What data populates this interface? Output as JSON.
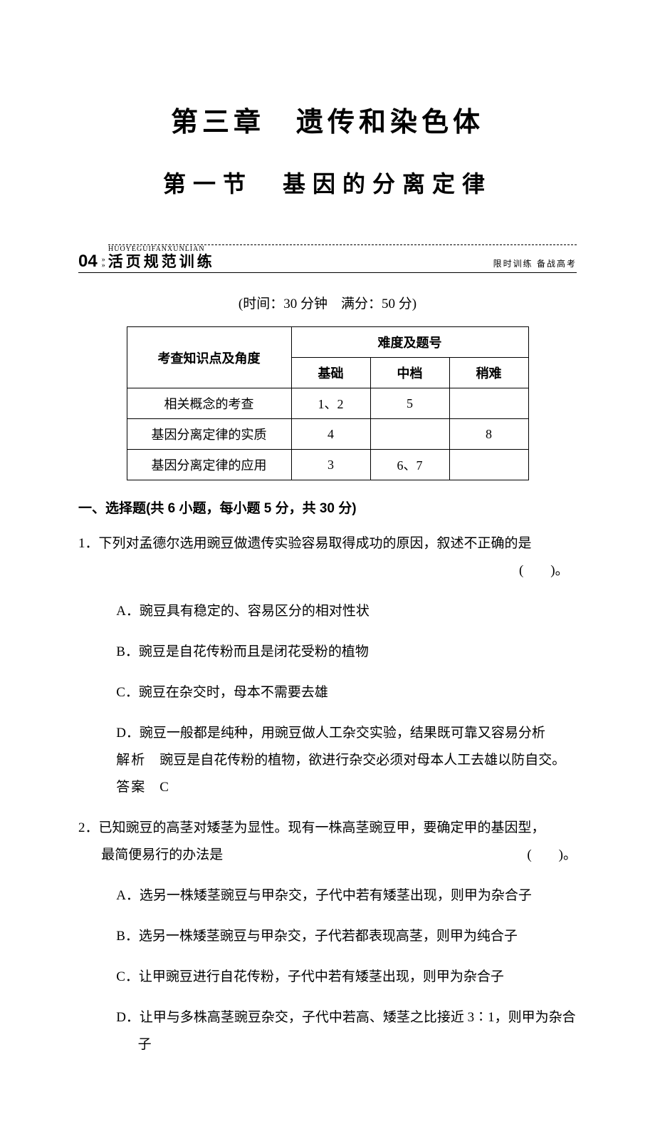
{
  "chapter_title": "第三章　遗传和染色体",
  "section_title": "第一节　基因的分离定律",
  "banner": {
    "number": "04",
    "pinyin": "HUOYEGUIFANXUNLIAN",
    "label": "活页规范训练",
    "right": "限时训练  备战高考"
  },
  "time_info": "(时间：30 分钟　满分：50 分)",
  "table": {
    "header_topic": "考查知识点及角度",
    "header_difficulty": "难度及题号",
    "col_basic": "基础",
    "col_medium": "中档",
    "col_hard": "稍难",
    "rows": [
      {
        "topic": "相关概念的考查",
        "basic": "1、2",
        "medium": "5",
        "hard": ""
      },
      {
        "topic": "基因分离定律的实质",
        "basic": "4",
        "medium": "",
        "hard": "8"
      },
      {
        "topic": "基因分离定律的应用",
        "basic": "3",
        "medium": "6、7",
        "hard": ""
      }
    ]
  },
  "section_heading": "一、选择题(共 6 小题，每小题 5 分，共 30 分)",
  "q1": {
    "num": "1．",
    "stem": "下列对孟德尔选用豌豆做遗传实验容易取得成功的原因，叙述不正确的是",
    "paren": "(　　)。",
    "opts": {
      "a": "A．豌豆具有稳定的、容易区分的相对性状",
      "b": "B．豌豆是自花传粉而且是闭花受粉的植物",
      "c": "C．豌豆在杂交时，母本不需要去雄",
      "d": "D．豌豆一般都是纯种，用豌豆做人工杂交实验，结果既可靠又容易分析"
    },
    "explain_label": "解析",
    "explain": "豌豆是自花传粉的植物，欲进行杂交必须对母本人工去雄以防自交。",
    "answer_label": "答案",
    "answer": "C"
  },
  "q2": {
    "num": "2．",
    "stem_line1": "已知豌豆的高茎对矮茎为显性。现有一株高茎豌豆甲，要确定甲的基因型，",
    "stem_line2": "最简便易行的办法是",
    "paren": "(　　)。",
    "opts": {
      "a": "A．选另一株矮茎豌豆与甲杂交，子代中若有矮茎出现，则甲为杂合子",
      "b": "B．选另一株矮茎豌豆与甲杂交，子代若都表现高茎，则甲为纯合子",
      "c": "C．让甲豌豆进行自花传粉，子代中若有矮茎出现，则甲为杂合子",
      "d": "D．让甲与多株高茎豌豆杂交，子代中若高、矮茎之比接近 3∶1，则甲为杂合子"
    }
  }
}
